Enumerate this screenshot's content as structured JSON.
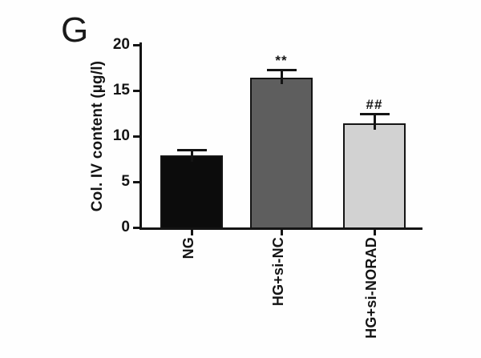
{
  "panel_label": "G",
  "chart_data": {
    "type": "bar",
    "title": "",
    "ylabel": "Col. IV content (µg/l)",
    "xlabel": "",
    "ylim": [
      0,
      20
    ],
    "yticks": [
      0,
      5,
      10,
      15,
      20
    ],
    "grid": false,
    "legend": null,
    "categories": [
      "NG",
      "HG+si-NC",
      "HG+si-NORAD"
    ],
    "values": [
      7.9,
      16.4,
      11.4
    ],
    "errors": [
      0.6,
      0.8,
      1.0
    ],
    "error_direction": "up",
    "annotations": [
      "",
      "**",
      "##"
    ],
    "bar_colors": [
      "#0c0c0c",
      "#5e5e5e",
      "#d2d2d2"
    ],
    "bar_border_color": "#141414",
    "axis_color": "#141414"
  }
}
